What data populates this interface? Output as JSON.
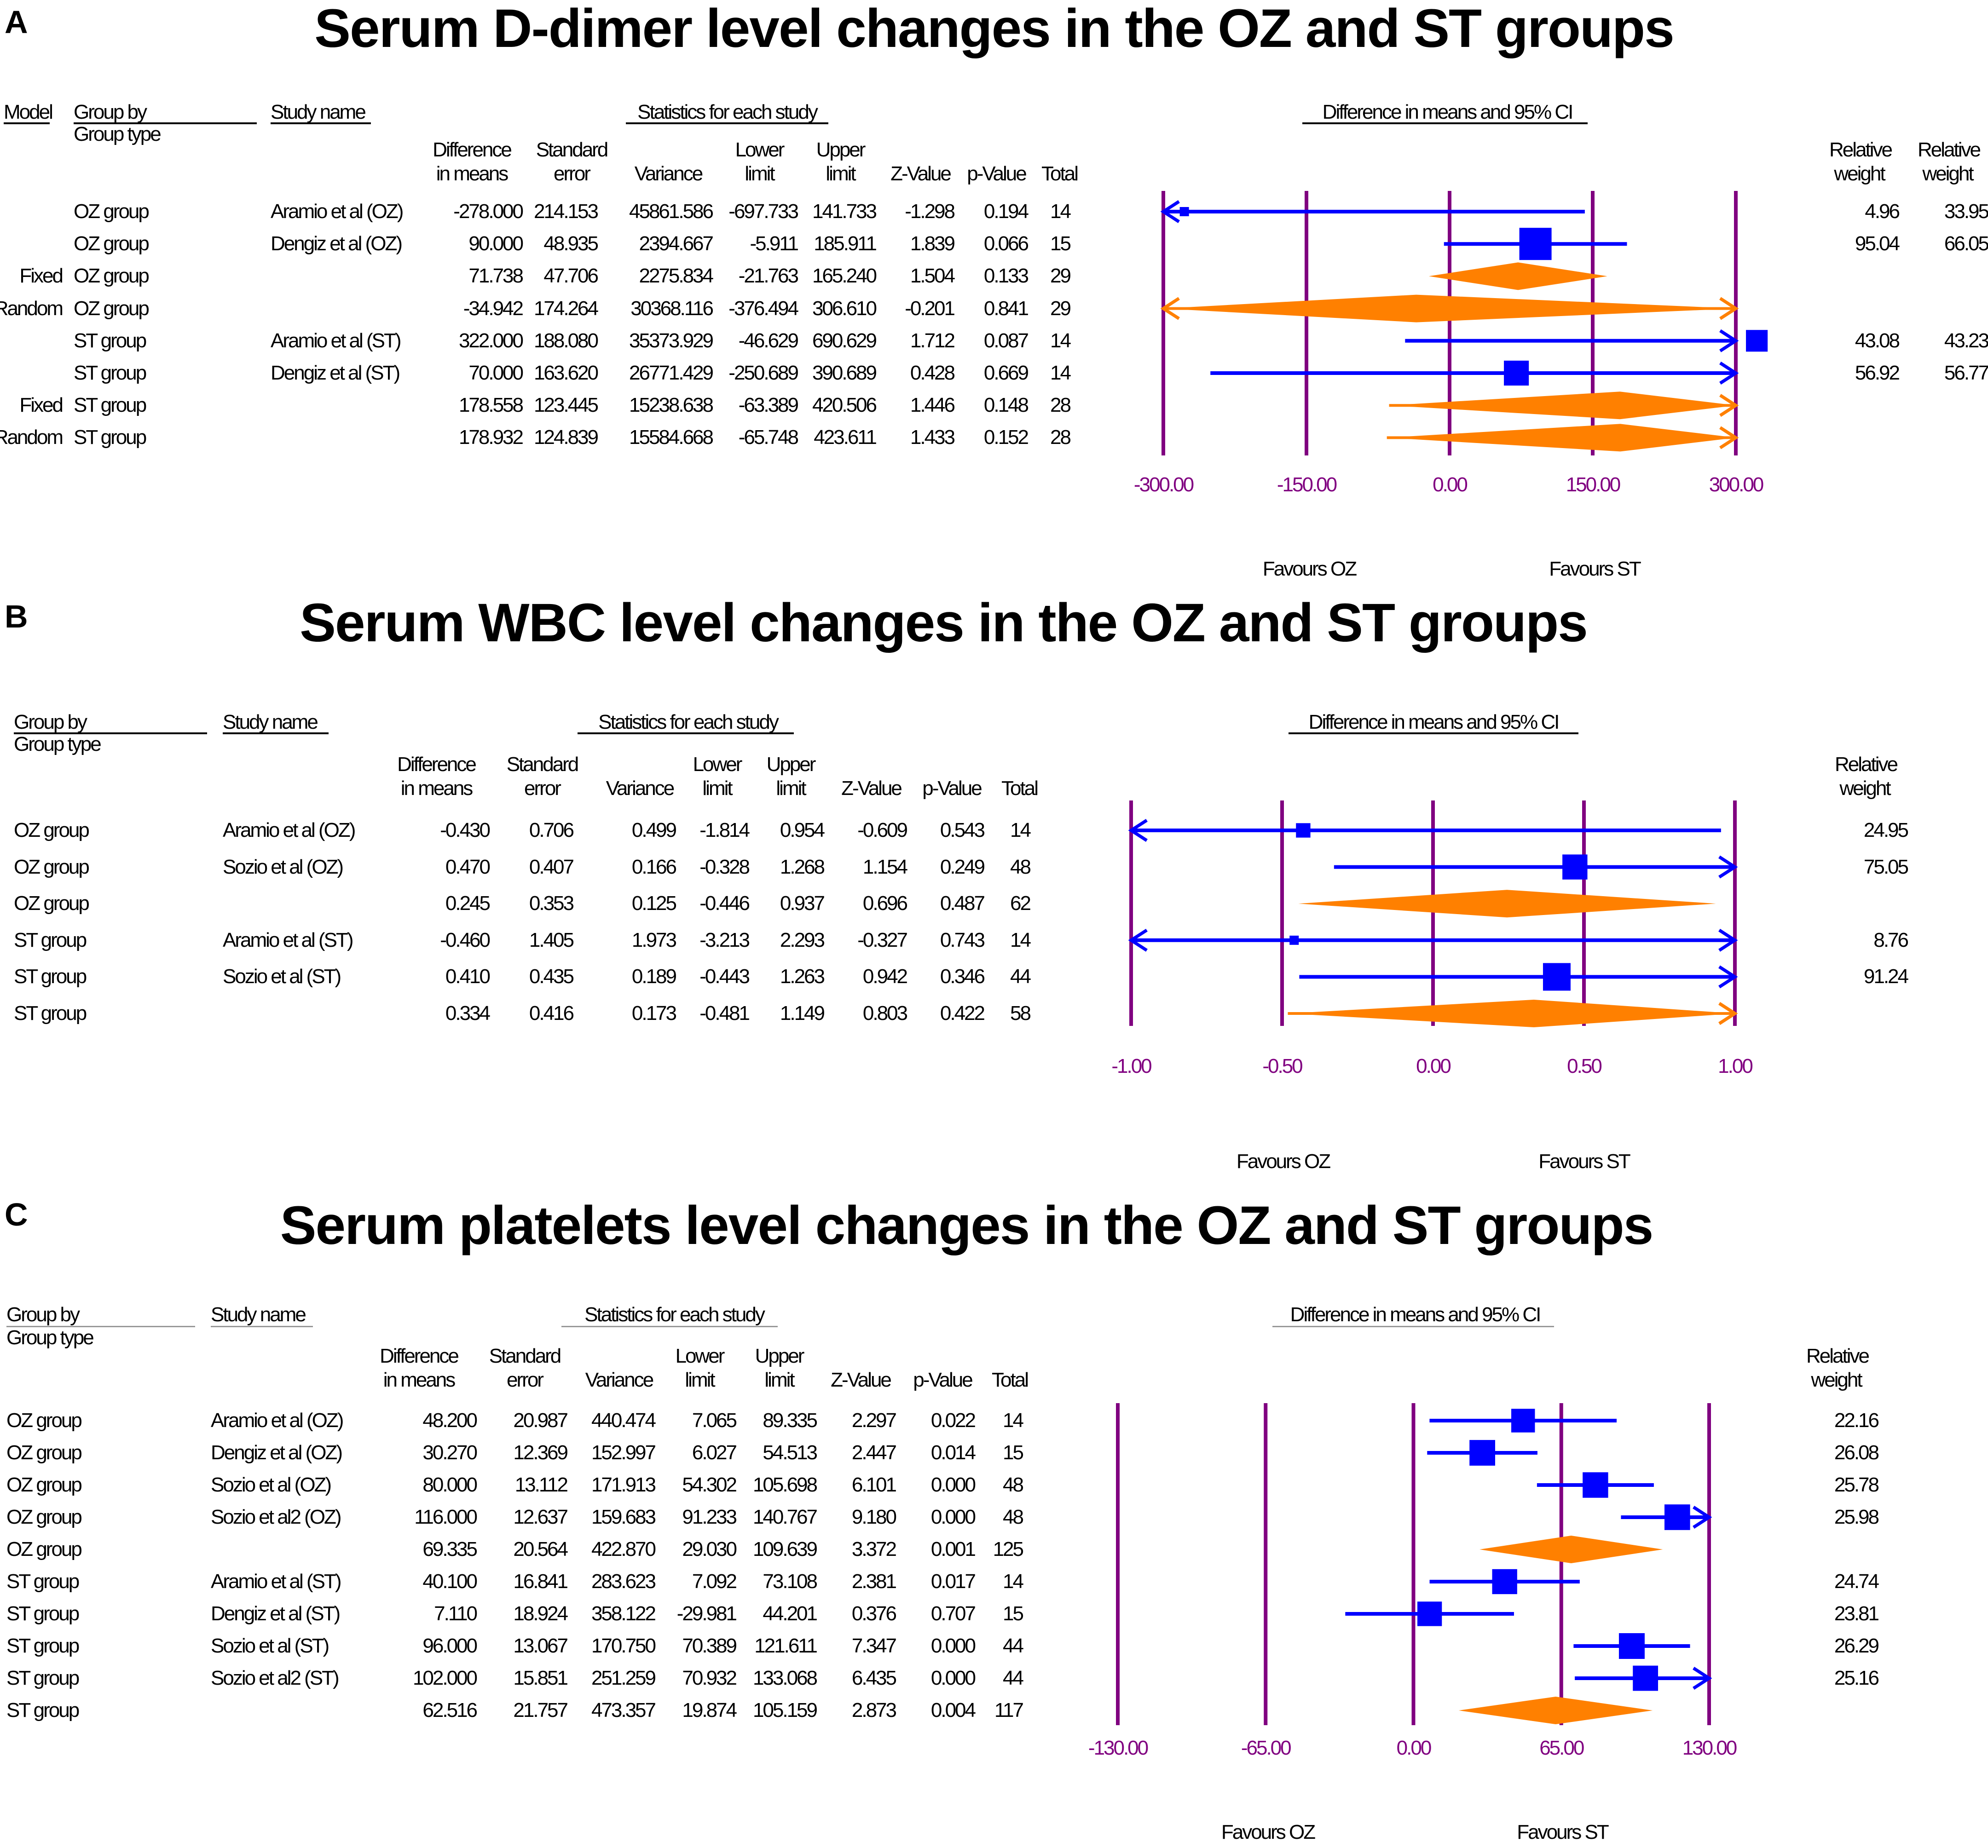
{
  "chart_data": [
    {
      "type": "forest",
      "letter": "A",
      "title": "Serum D-dimer level changes in the OZ and ST groups",
      "headers": {
        "model": "Model",
        "group_by": "Group by",
        "group_type": "Group type",
        "study_name": "Study name",
        "stats": "Statistics for each study",
        "ci": "Difference in means and 95% CI",
        "columns": [
          "Difference in means",
          "Standard error",
          "Variance",
          "Lower limit",
          "Upper limit",
          "Z-Value",
          "p-Value",
          "Total"
        ],
        "rel1": "Relative weight",
        "rel2": "Relative weight"
      },
      "axis": {
        "min": -300,
        "max": 300,
        "ticks": [
          "-300.00",
          "-150.00",
          "0.00",
          "150.00",
          "300.00"
        ],
        "tick_values": [
          -300,
          -150,
          0,
          150,
          300
        ]
      },
      "favours": {
        "left": "Favours OZ",
        "right": "Favours ST"
      },
      "rows": [
        {
          "model": "",
          "group": "OZ group",
          "study": "Aramio et al (OZ)",
          "diff": "-278.000",
          "se": "214.153",
          "var": "45861.586",
          "lower": "-697.733",
          "upper": "141.733",
          "z": "-1.298",
          "p": "0.194",
          "total": "14",
          "rw1": "4.96",
          "rw2": "33.95",
          "kind": "study",
          "d": -278,
          "lo": -697.733,
          "hi": 141.733,
          "w": 4.96
        },
        {
          "model": "",
          "group": "OZ group",
          "study": "Dengiz et al (OZ)",
          "diff": "90.000",
          "se": "48.935",
          "var": "2394.667",
          "lower": "-5.911",
          "upper": "185.911",
          "z": "1.839",
          "p": "0.066",
          "total": "15",
          "rw1": "95.04",
          "rw2": "66.05",
          "kind": "study",
          "d": 90,
          "lo": -5.911,
          "hi": 185.911,
          "w": 95.04
        },
        {
          "model": "Fixed",
          "group": "OZ group",
          "study": "",
          "diff": "71.738",
          "se": "47.706",
          "var": "2275.834",
          "lower": "-21.763",
          "upper": "165.240",
          "z": "1.504",
          "p": "0.133",
          "total": "29",
          "rw1": "",
          "rw2": "",
          "kind": "summary",
          "d": 71.738,
          "lo": -21.763,
          "hi": 165.24,
          "w": 0
        },
        {
          "model": "Random",
          "group": "OZ group",
          "study": "",
          "diff": "-34.942",
          "se": "174.264",
          "var": "30368.116",
          "lower": "-376.494",
          "upper": "306.610",
          "z": "-0.201",
          "p": "0.841",
          "total": "29",
          "rw1": "",
          "rw2": "",
          "kind": "summary",
          "d": -34.942,
          "lo": -376.494,
          "hi": 306.61,
          "w": 0
        },
        {
          "model": "",
          "group": "ST group",
          "study": "Aramio et al (ST)",
          "diff": "322.000",
          "se": "188.080",
          "var": "35373.929",
          "lower": "-46.629",
          "upper": "690.629",
          "z": "1.712",
          "p": "0.087",
          "total": "14",
          "rw1": "43.08",
          "rw2": "43.23",
          "kind": "study",
          "d": 322,
          "lo": -46.629,
          "hi": 690.629,
          "w": 43.08
        },
        {
          "model": "",
          "group": "ST group",
          "study": "Dengiz et al (ST)",
          "diff": "70.000",
          "se": "163.620",
          "var": "26771.429",
          "lower": "-250.689",
          "upper": "390.689",
          "z": "0.428",
          "p": "0.669",
          "total": "14",
          "rw1": "56.92",
          "rw2": "56.77",
          "kind": "study",
          "d": 70,
          "lo": -250.689,
          "hi": 390.689,
          "w": 56.92
        },
        {
          "model": "Fixed",
          "group": "ST group",
          "study": "",
          "diff": "178.558",
          "se": "123.445",
          "var": "15238.638",
          "lower": "-63.389",
          "upper": "420.506",
          "z": "1.446",
          "p": "0.148",
          "total": "28",
          "rw1": "",
          "rw2": "",
          "kind": "summary",
          "d": 178.558,
          "lo": -63.389,
          "hi": 420.506,
          "w": 0
        },
        {
          "model": "Random",
          "group": "ST group",
          "study": "",
          "diff": "178.932",
          "se": "124.839",
          "var": "15584.668",
          "lower": "-65.748",
          "upper": "423.611",
          "z": "1.433",
          "p": "0.152",
          "total": "28",
          "rw1": "",
          "rw2": "",
          "kind": "summary",
          "d": 178.932,
          "lo": -65.748,
          "hi": 423.611,
          "w": 0
        }
      ]
    },
    {
      "type": "forest",
      "letter": "B",
      "title": "Serum WBC level changes in the OZ and ST groups",
      "headers": {
        "group_by": "Group by",
        "group_type": "Group type",
        "study_name": "Study name",
        "stats": "Statistics for each study",
        "ci": "Difference in means and 95% CI",
        "columns": [
          "Difference in means",
          "Standard error",
          "Variance",
          "Lower limit",
          "Upper limit",
          "Z-Value",
          "p-Value",
          "Total"
        ],
        "rel1": "Relative weight"
      },
      "axis": {
        "min": -1,
        "max": 1,
        "ticks": [
          "-1.00",
          "-0.50",
          "0.00",
          "0.50",
          "1.00"
        ],
        "tick_values": [
          -1,
          -0.5,
          0,
          0.5,
          1
        ]
      },
      "favours": {
        "left": "Favours OZ",
        "right": "Favours ST"
      },
      "rows": [
        {
          "group": "OZ group",
          "study": "Aramio et al (OZ)",
          "diff": "-0.430",
          "se": "0.706",
          "var": "0.499",
          "lower": "-1.814",
          "upper": "0.954",
          "z": "-0.609",
          "p": "0.543",
          "total": "14",
          "rw1": "24.95",
          "kind": "study",
          "d": -0.43,
          "lo": -1.814,
          "hi": 0.954,
          "w": 24.95
        },
        {
          "group": "OZ group",
          "study": "Sozio et al (OZ)",
          "diff": "0.470",
          "se": "0.407",
          "var": "0.166",
          "lower": "-0.328",
          "upper": "1.268",
          "z": "1.154",
          "p": "0.249",
          "total": "48",
          "rw1": "75.05",
          "kind": "study",
          "d": 0.47,
          "lo": -0.328,
          "hi": 1.268,
          "w": 75.05
        },
        {
          "group": "OZ group",
          "study": "",
          "diff": "0.245",
          "se": "0.353",
          "var": "0.125",
          "lower": "-0.446",
          "upper": "0.937",
          "z": "0.696",
          "p": "0.487",
          "total": "62",
          "rw1": "",
          "kind": "summary",
          "d": 0.245,
          "lo": -0.446,
          "hi": 0.937,
          "w": 0
        },
        {
          "group": "ST group",
          "study": "Aramio et al (ST)",
          "diff": "-0.460",
          "se": "1.405",
          "var": "1.973",
          "lower": "-3.213",
          "upper": "2.293",
          "z": "-0.327",
          "p": "0.743",
          "total": "14",
          "rw1": "8.76",
          "kind": "study",
          "d": -0.46,
          "lo": -3.213,
          "hi": 2.293,
          "w": 8.76
        },
        {
          "group": "ST group",
          "study": "Sozio et al (ST)",
          "diff": "0.410",
          "se": "0.435",
          "var": "0.189",
          "lower": "-0.443",
          "upper": "1.263",
          "z": "0.942",
          "p": "0.346",
          "total": "44",
          "rw1": "91.24",
          "kind": "study",
          "d": 0.41,
          "lo": -0.443,
          "hi": 1.263,
          "w": 91.24
        },
        {
          "group": "ST group",
          "study": "",
          "diff": "0.334",
          "se": "0.416",
          "var": "0.173",
          "lower": "-0.481",
          "upper": "1.149",
          "z": "0.803",
          "p": "0.422",
          "total": "58",
          "rw1": "",
          "kind": "summary",
          "d": 0.334,
          "lo": -0.481,
          "hi": 1.149,
          "w": 0
        }
      ]
    },
    {
      "type": "forest",
      "letter": "C",
      "title": "Serum platelets level changes in the OZ and ST groups",
      "headers": {
        "group_by": "Group by",
        "group_type": "Group type",
        "study_name": "Study name",
        "stats": "Statistics for each study",
        "ci": "Difference in means and 95% CI",
        "columns": [
          "Difference in means",
          "Standard error",
          "Variance",
          "Lower limit",
          "Upper limit",
          "Z-Value",
          "p-Value",
          "Total"
        ],
        "rel1": "Relative weight"
      },
      "axis": {
        "min": -130,
        "max": 130,
        "ticks": [
          "-130.00",
          "-65.00",
          "0.00",
          "65.00",
          "130.00"
        ],
        "tick_values": [
          -130,
          -65,
          0,
          65,
          130
        ]
      },
      "favours": {
        "left": "Favours OZ",
        "right": "Favours ST"
      },
      "rows": [
        {
          "group": "OZ group",
          "study": "Aramio et al (OZ)",
          "diff": "48.200",
          "se": "20.987",
          "var": "440.474",
          "lower": "7.065",
          "upper": "89.335",
          "z": "2.297",
          "p": "0.022",
          "total": "14",
          "rw1": "22.16",
          "kind": "study",
          "d": 48.2,
          "lo": 7.065,
          "hi": 89.335,
          "w": 22.16
        },
        {
          "group": "OZ group",
          "study": "Dengiz et al (OZ)",
          "diff": "30.270",
          "se": "12.369",
          "var": "152.997",
          "lower": "6.027",
          "upper": "54.513",
          "z": "2.447",
          "p": "0.014",
          "total": "15",
          "rw1": "26.08",
          "kind": "study",
          "d": 30.27,
          "lo": 6.027,
          "hi": 54.513,
          "w": 26.08
        },
        {
          "group": "OZ group",
          "study": "Sozio et al (OZ)",
          "diff": "80.000",
          "se": "13.112",
          "var": "171.913",
          "lower": "54.302",
          "upper": "105.698",
          "z": "6.101",
          "p": "0.000",
          "total": "48",
          "rw1": "25.78",
          "kind": "study",
          "d": 80,
          "lo": 54.302,
          "hi": 105.698,
          "w": 25.78
        },
        {
          "group": "OZ group",
          "study": "Sozio et al2 (OZ)",
          "diff": "116.000",
          "se": "12.637",
          "var": "159.683",
          "lower": "91.233",
          "upper": "140.767",
          "z": "9.180",
          "p": "0.000",
          "total": "48",
          "rw1": "25.98",
          "kind": "study",
          "d": 116,
          "lo": 91.233,
          "hi": 140.767,
          "w": 25.98
        },
        {
          "group": "OZ group",
          "study": "",
          "diff": "69.335",
          "se": "20.564",
          "var": "422.870",
          "lower": "29.030",
          "upper": "109.639",
          "z": "3.372",
          "p": "0.001",
          "total": "125",
          "rw1": "",
          "kind": "summary",
          "d": 69.335,
          "lo": 29.03,
          "hi": 109.639,
          "w": 0
        },
        {
          "group": "ST group",
          "study": "Aramio et al (ST)",
          "diff": "40.100",
          "se": "16.841",
          "var": "283.623",
          "lower": "7.092",
          "upper": "73.108",
          "z": "2.381",
          "p": "0.017",
          "total": "14",
          "rw1": "24.74",
          "kind": "study",
          "d": 40.1,
          "lo": 7.092,
          "hi": 73.108,
          "w": 24.74
        },
        {
          "group": "ST group",
          "study": "Dengiz et al (ST)",
          "diff": "7.110",
          "se": "18.924",
          "var": "358.122",
          "lower": "-29.981",
          "upper": "44.201",
          "z": "0.376",
          "p": "0.707",
          "total": "15",
          "rw1": "23.81",
          "kind": "study",
          "d": 7.11,
          "lo": -29.981,
          "hi": 44.201,
          "w": 23.81
        },
        {
          "group": "ST group",
          "study": "Sozio et al (ST)",
          "diff": "96.000",
          "se": "13.067",
          "var": "170.750",
          "lower": "70.389",
          "upper": "121.611",
          "z": "7.347",
          "p": "0.000",
          "total": "44",
          "rw1": "26.29",
          "kind": "study",
          "d": 96,
          "lo": 70.389,
          "hi": 121.611,
          "w": 26.29
        },
        {
          "group": "ST group",
          "study": "Sozio et al2 (ST)",
          "diff": "102.000",
          "se": "15.851",
          "var": "251.259",
          "lower": "70.932",
          "upper": "133.068",
          "z": "6.435",
          "p": "0.000",
          "total": "44",
          "rw1": "25.16",
          "kind": "study",
          "d": 102,
          "lo": 70.932,
          "hi": 133.068,
          "w": 25.16
        },
        {
          "group": "ST group",
          "study": "",
          "diff": "62.516",
          "se": "21.757",
          "var": "473.357",
          "lower": "19.874",
          "upper": "105.159",
          "z": "2.873",
          "p": "0.004",
          "total": "117",
          "rw1": "",
          "kind": "summary",
          "d": 62.516,
          "lo": 19.874,
          "hi": 105.159,
          "w": 0
        }
      ]
    }
  ],
  "colors": {
    "ci_line": "#0000FF",
    "summary": "#FF8000",
    "grid": "#800080",
    "tick": "#800080"
  }
}
